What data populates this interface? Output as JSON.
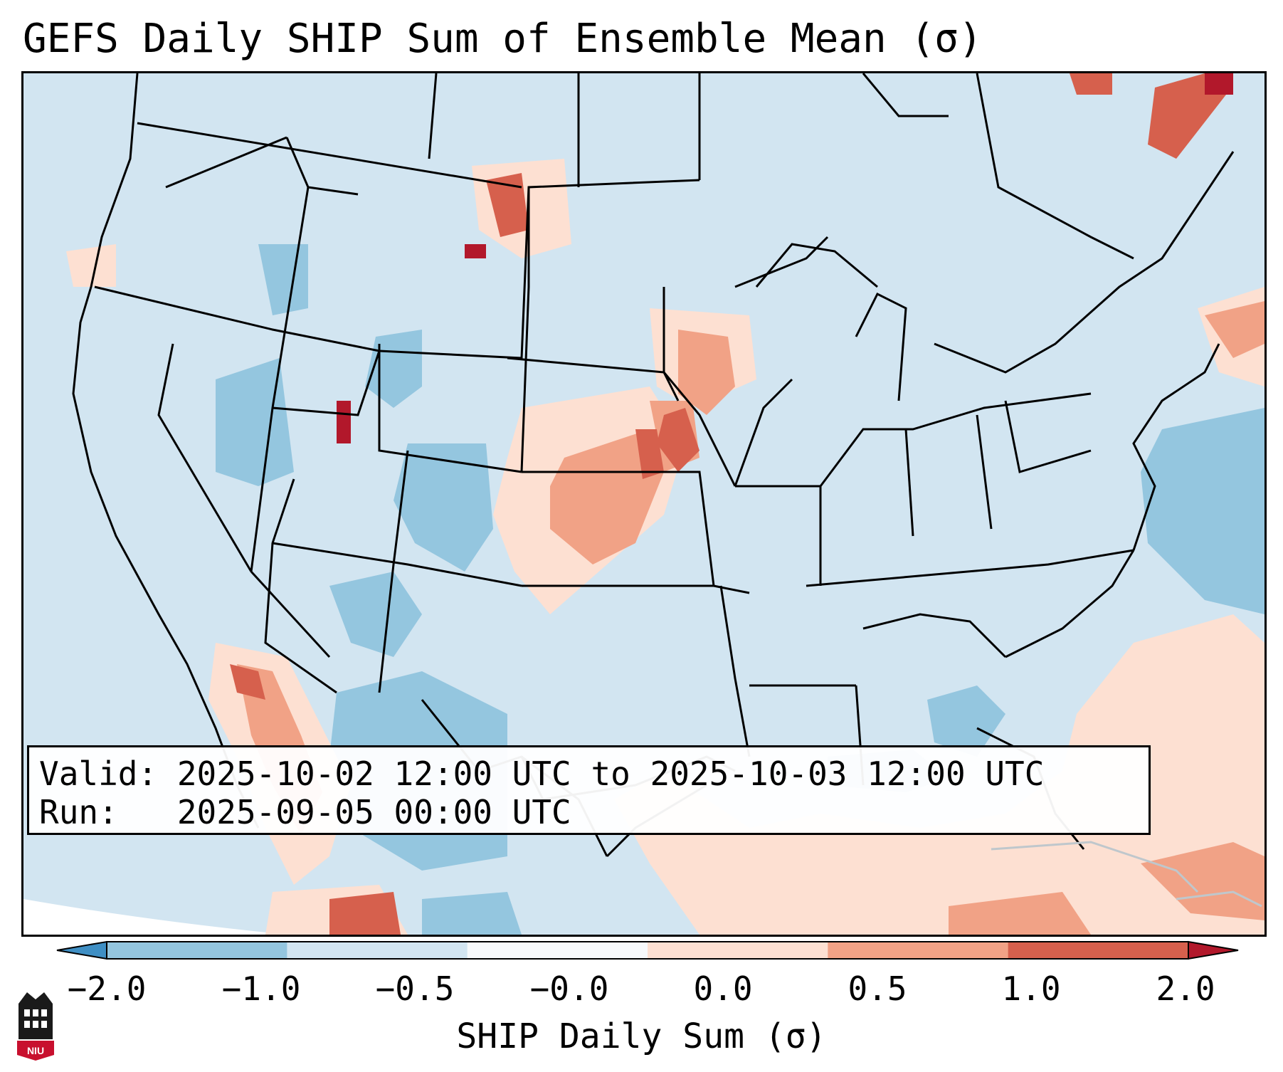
{
  "title": "GEFS Daily SHIP Sum of Ensemble Mean (σ)",
  "info": {
    "valid": "Valid: 2025-10-02 12:00 UTC to 2025-10-03 12:00 UTC",
    "run": "Run:   2025-09-05 00:00 UTC"
  },
  "colorbar": {
    "label": "SHIP Daily Sum (σ)",
    "ticks": [
      "−2.0",
      "−1.0",
      "−0.5",
      "−0.0",
      "0.0",
      "0.5",
      "1.0",
      "2.0"
    ],
    "colors": [
      "#3f8fc4",
      "#94c6df",
      "#d2e5f1",
      "#f7f9fb",
      "#fde0d2",
      "#f1a286",
      "#d6604d",
      "#b2182b"
    ]
  },
  "palette": {
    "very_neg": "#3f8fc4",
    "neg": "#94c6df",
    "light_neg": "#d2e5f1",
    "light_pos": "#fde0d2",
    "pos": "#f1a286",
    "strong_pos": "#d6604d",
    "max_pos": "#b2182b"
  },
  "logo": {
    "text": "NIU"
  }
}
